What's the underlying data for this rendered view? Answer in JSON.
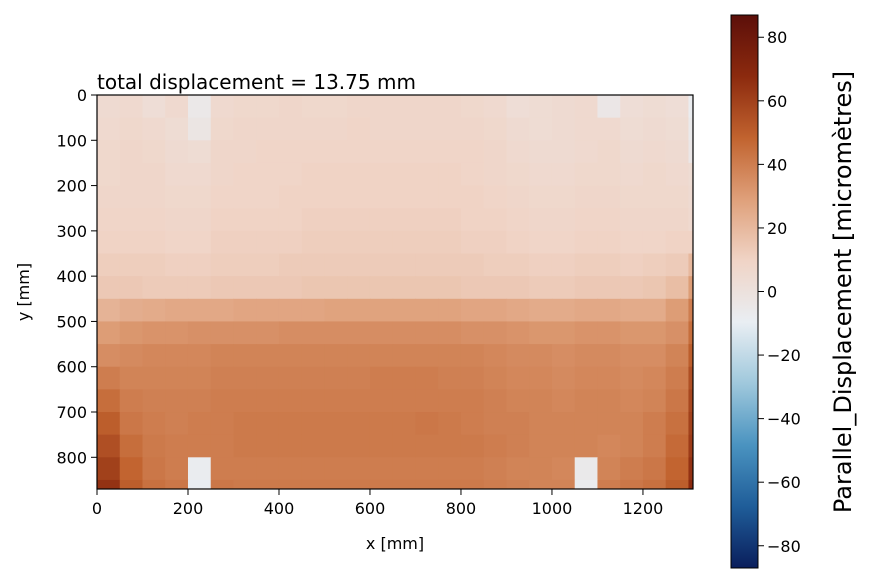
{
  "chart_data": {
    "type": "heatmap",
    "title": "total displacement = 13.75 mm",
    "xlabel": "x [mm]",
    "ylabel": "y [mm]",
    "xlim": [
      0,
      1310
    ],
    "ylim": [
      870,
      0
    ],
    "x_ticks": [
      0,
      200,
      400,
      600,
      800,
      1000,
      1200
    ],
    "y_ticks": [
      0,
      100,
      200,
      300,
      400,
      500,
      600,
      700,
      800
    ],
    "colorbar": {
      "label": "Parallel_Displacement  [micromètres]",
      "range": [
        -87,
        87
      ],
      "ticks": [
        80,
        60,
        40,
        20,
        0,
        -20,
        -40,
        -60,
        -80
      ],
      "tick_labels": [
        "80",
        "60",
        "40",
        "20",
        "0",
        "−20",
        "−40",
        "−60",
        "−80"
      ],
      "colormap": [
        "#0a1e5c",
        "#1f5d99",
        "#4a93c0",
        "#9fc8dc",
        "#e9eef3",
        "#f0d4c6",
        "#dfa07a",
        "#c1632f",
        "#8c2a0e",
        "#5c0f0a"
      ]
    },
    "field": {
      "description_regions": [
        {
          "y_range": [
            0,
            440
          ],
          "typical_value": 8
        },
        {
          "y_range": [
            440,
            870
          ],
          "typical_value": 30
        }
      ],
      "grid_x_mm": [
        0,
        50,
        100,
        150,
        200,
        250,
        300,
        350,
        400,
        450,
        500,
        550,
        600,
        650,
        700,
        750,
        800,
        850,
        900,
        950,
        1000,
        1050,
        1100,
        1150,
        1200,
        1250,
        1300
      ],
      "grid_y_mm": [
        0,
        50,
        100,
        150,
        200,
        250,
        300,
        350,
        400,
        450,
        500,
        550,
        600,
        650,
        700,
        750,
        800,
        850
      ],
      "values": [
        [
          5,
          6,
          3,
          6,
          -5,
          6,
          7,
          7,
          8,
          7,
          7,
          8,
          8,
          8,
          8,
          8,
          7,
          6,
          3,
          4,
          5,
          6,
          -4,
          3,
          4,
          3,
          -8
        ],
        [
          6,
          7,
          6,
          4,
          -3,
          7,
          8,
          8,
          8,
          8,
          8,
          9,
          8,
          8,
          8,
          8,
          8,
          7,
          5,
          4,
          5,
          6,
          6,
          4,
          5,
          4,
          -6
        ],
        [
          7,
          8,
          7,
          5,
          4,
          8,
          8,
          9,
          9,
          9,
          9,
          9,
          9,
          9,
          9,
          9,
          9,
          8,
          6,
          5,
          5,
          6,
          7,
          5,
          6,
          5,
          -4
        ],
        [
          7,
          8,
          8,
          6,
          6,
          8,
          9,
          9,
          9,
          10,
          10,
          10,
          10,
          10,
          10,
          10,
          9,
          8,
          7,
          6,
          6,
          7,
          7,
          6,
          7,
          6,
          4
        ],
        [
          8,
          8,
          8,
          7,
          7,
          9,
          9,
          9,
          10,
          10,
          10,
          10,
          10,
          10,
          10,
          10,
          10,
          9,
          8,
          7,
          7,
          8,
          8,
          7,
          7,
          7,
          5
        ],
        [
          9,
          9,
          9,
          8,
          8,
          10,
          10,
          10,
          10,
          11,
          11,
          11,
          11,
          11,
          11,
          11,
          10,
          10,
          9,
          8,
          8,
          9,
          9,
          8,
          8,
          8,
          6
        ],
        [
          10,
          10,
          10,
          9,
          9,
          11,
          11,
          11,
          11,
          12,
          12,
          12,
          12,
          12,
          12,
          12,
          11,
          11,
          10,
          9,
          9,
          10,
          10,
          9,
          9,
          10,
          10
        ],
        [
          12,
          12,
          12,
          11,
          11,
          12,
          12,
          12,
          13,
          13,
          13,
          13,
          13,
          13,
          13,
          13,
          13,
          12,
          12,
          11,
          11,
          12,
          12,
          11,
          12,
          13,
          20
        ],
        [
          14,
          14,
          13,
          13,
          13,
          14,
          14,
          14,
          14,
          15,
          15,
          15,
          15,
          15,
          15,
          15,
          14,
          14,
          14,
          13,
          13,
          14,
          14,
          14,
          15,
          18,
          30
        ],
        [
          22,
          24,
          25,
          26,
          26,
          26,
          27,
          27,
          27,
          27,
          28,
          28,
          28,
          28,
          28,
          28,
          27,
          27,
          26,
          25,
          25,
          26,
          26,
          25,
          25,
          30,
          40
        ],
        [
          30,
          32,
          33,
          33,
          34,
          34,
          34,
          34,
          35,
          35,
          35,
          35,
          35,
          35,
          35,
          35,
          34,
          34,
          33,
          32,
          32,
          33,
          33,
          32,
          32,
          34,
          45
        ],
        [
          35,
          36,
          37,
          37,
          37,
          38,
          38,
          38,
          38,
          38,
          38,
          38,
          38,
          38,
          38,
          38,
          38,
          37,
          36,
          36,
          35,
          36,
          36,
          35,
          35,
          38,
          50
        ],
        [
          40,
          38,
          38,
          38,
          38,
          39,
          39,
          39,
          39,
          39,
          39,
          39,
          40,
          40,
          40,
          39,
          39,
          38,
          37,
          37,
          36,
          37,
          37,
          36,
          37,
          40,
          55
        ],
        [
          45,
          40,
          39,
          39,
          39,
          40,
          40,
          40,
          40,
          40,
          40,
          40,
          40,
          40,
          40,
          40,
          40,
          39,
          38,
          38,
          37,
          38,
          38,
          37,
          38,
          42,
          58
        ],
        [
          50,
          42,
          40,
          39,
          40,
          40,
          41,
          41,
          41,
          41,
          41,
          41,
          41,
          41,
          42,
          41,
          40,
          39,
          39,
          38,
          38,
          38,
          38,
          38,
          40,
          44,
          60
        ],
        [
          55,
          45,
          41,
          40,
          40,
          40,
          41,
          41,
          41,
          41,
          41,
          41,
          41,
          41,
          41,
          41,
          41,
          40,
          39,
          38,
          38,
          38,
          37,
          38,
          40,
          46,
          62
        ],
        [
          60,
          48,
          42,
          40,
          -8,
          40,
          40,
          40,
          40,
          40,
          40,
          40,
          40,
          40,
          40,
          40,
          40,
          39,
          38,
          38,
          37,
          -6,
          38,
          40,
          42,
          48,
          65
        ],
        [
          65,
          50,
          44,
          42,
          -10,
          42,
          41,
          41,
          41,
          41,
          41,
          41,
          41,
          41,
          41,
          41,
          41,
          40,
          39,
          38,
          38,
          -8,
          40,
          42,
          44,
          50,
          68
        ]
      ]
    }
  }
}
